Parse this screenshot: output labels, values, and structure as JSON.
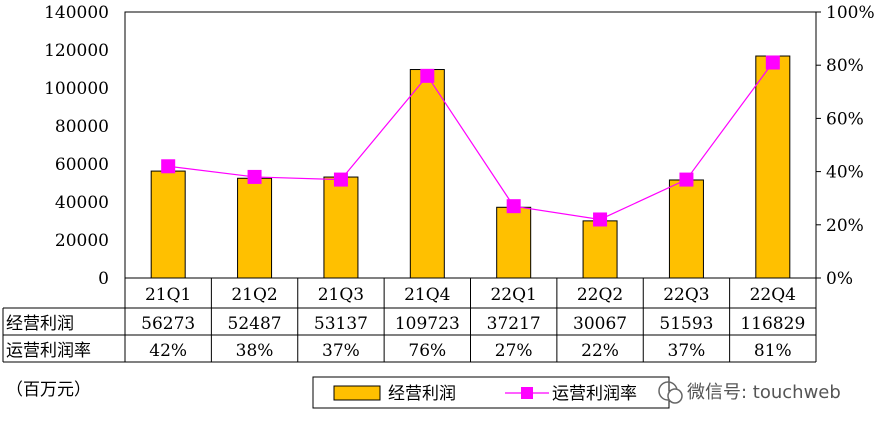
{
  "chart_data": {
    "type": "bar",
    "categories": [
      "21Q1",
      "21Q2",
      "21Q3",
      "21Q4",
      "22Q1",
      "22Q2",
      "22Q3",
      "22Q4"
    ],
    "series": [
      {
        "name": "经营利润",
        "type": "bar",
        "axis": "left",
        "color": "#FFC000",
        "values": [
          56273,
          52487,
          53137,
          109723,
          37217,
          30067,
          51593,
          116829
        ]
      },
      {
        "name": "运营利润率",
        "type": "line",
        "axis": "right",
        "color": "#FF00FF",
        "values": [
          42,
          38,
          37,
          76,
          27,
          22,
          37,
          81
        ]
      }
    ],
    "y_left": {
      "min": 0,
      "max": 140000,
      "ticks": [
        "0",
        "20000",
        "40000",
        "60000",
        "80000",
        "100000",
        "120000",
        "140000"
      ]
    },
    "y_right": {
      "min": 0,
      "max": 100,
      "ticks": [
        "0%",
        "20%",
        "40%",
        "60%",
        "80%",
        "100%"
      ]
    },
    "table": {
      "row_labels": [
        "经营利润",
        "运营利润率"
      ],
      "rows": [
        [
          "56273",
          "52487",
          "53137",
          "109723",
          "37217",
          "30067",
          "51593",
          "116829"
        ],
        [
          "42%",
          "38%",
          "37%",
          "76%",
          "27%",
          "22%",
          "37%",
          "81%"
        ]
      ]
    },
    "unit_label": "（百万元）",
    "legend": {
      "placement": "bottom",
      "entries": [
        "经营利润",
        "运营利润率"
      ]
    },
    "grid": false
  },
  "watermark": "微信号: touchweb"
}
